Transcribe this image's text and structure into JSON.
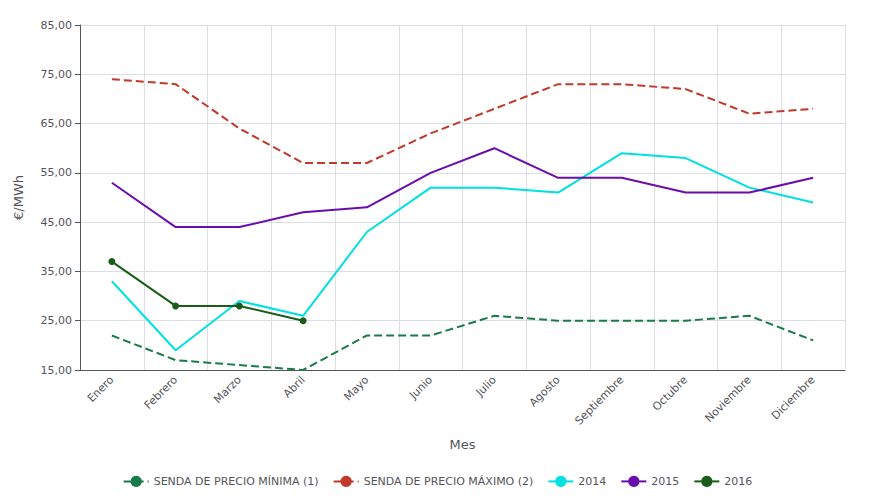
{
  "chart_data": {
    "type": "line",
    "xlabel": "Mes",
    "ylabel": "€/MWh",
    "categories": [
      "Enero",
      "Febrero",
      "Marzo",
      "Abril",
      "Mayo",
      "Junio",
      "Julio",
      "Agosto",
      "Septiembre",
      "Octubre",
      "Noviembre",
      "Diciembre"
    ],
    "series": [
      {
        "name": "SENDA DE PRECIO MÍNIMA (1)",
        "color": "#1a7a4a",
        "line_style": "dashed",
        "marker": "none",
        "values": [
          22,
          17,
          16,
          15,
          22,
          22,
          26,
          25,
          25,
          25,
          26,
          21
        ]
      },
      {
        "name": "SENDA DE PRECIO MÁXIMO (2)",
        "color": "#c0392b",
        "line_style": "dashed",
        "marker": "none",
        "values": [
          74,
          73,
          64,
          57,
          57,
          63,
          68,
          73,
          73,
          72,
          67,
          68
        ]
      },
      {
        "name": "2014",
        "color": "#00e0e0",
        "line_style": "solid",
        "marker": "none",
        "values": [
          33,
          19,
          29,
          26,
          43,
          52,
          52,
          51,
          59,
          58,
          52,
          49
        ]
      },
      {
        "name": "2015",
        "color": "#6a0dad",
        "line_style": "solid",
        "marker": "none",
        "values": [
          53,
          44,
          44,
          47,
          48,
          55,
          60,
          54,
          54,
          51,
          51,
          54
        ]
      },
      {
        "name": "2016",
        "color": "#1a5c1a",
        "line_style": "solid",
        "marker": "circle",
        "values": [
          37,
          28,
          28,
          25,
          null,
          null,
          null,
          null,
          null,
          null,
          null,
          null
        ]
      }
    ],
    "ylim": [
      15,
      85
    ],
    "yticks": [
      {
        "value": 15,
        "label": "15,00"
      },
      {
        "value": 25,
        "label": "25,00"
      },
      {
        "value": 35,
        "label": "35,00"
      },
      {
        "value": 45,
        "label": "45,00"
      },
      {
        "value": 55,
        "label": "55,00"
      },
      {
        "value": 65,
        "label": "65,00"
      },
      {
        "value": 75,
        "label": "75,00"
      },
      {
        "value": 85,
        "label": "85,00"
      }
    ],
    "grid": true,
    "legend": "bottom"
  }
}
